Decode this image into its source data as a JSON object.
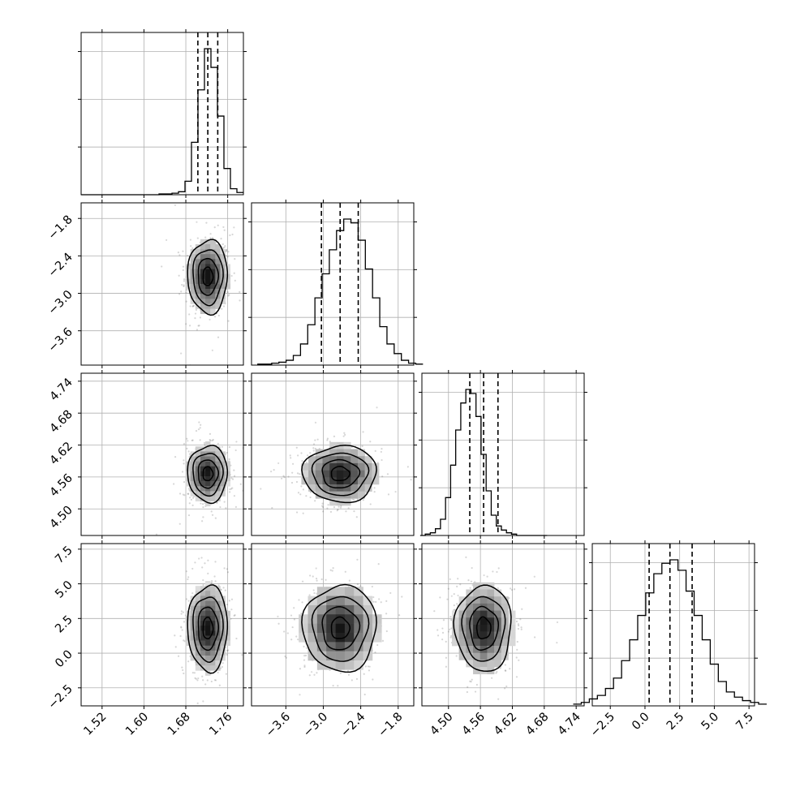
{
  "figure": {
    "title": "",
    "type": "corner-plot"
  },
  "chart_data": {
    "type": "corner",
    "grid": true,
    "parameter_count": 4,
    "parameters": [
      {
        "name": "",
        "range": [
          1.48,
          1.79
        ],
        "ticks": [
          1.52,
          1.6,
          1.68,
          1.76
        ],
        "tick_labels": [
          "1.52",
          "1.60",
          "1.68",
          "1.76"
        ],
        "quantiles": [
          1.703,
          1.722,
          1.741
        ],
        "hist_counts": [
          0,
          0,
          0,
          0,
          0,
          0,
          0,
          0,
          0,
          0,
          0,
          0,
          1,
          1,
          2,
          4,
          18,
          70,
          140,
          195,
          170,
          105,
          35,
          8,
          3
        ]
      },
      {
        "name": "",
        "range": [
          -4.15,
          -1.55
        ],
        "ticks": [
          -3.6,
          -3.0,
          -2.4,
          -1.8
        ],
        "tick_labels": [
          "−3.6",
          "−3.0",
          "−2.4",
          "−1.8"
        ],
        "quantiles": [
          -3.03,
          -2.73,
          -2.44
        ],
        "hist_counts": [
          1,
          1,
          2,
          3,
          5,
          10,
          22,
          42,
          70,
          95,
          120,
          140,
          152,
          148,
          130,
          100,
          70,
          40,
          22,
          12,
          5,
          2,
          1
        ]
      },
      {
        "name": "",
        "range": [
          4.45,
          4.755
        ],
        "ticks": [
          4.5,
          4.56,
          4.62,
          4.68,
          4.74
        ],
        "tick_labels": [
          "4.50",
          "4.56",
          "4.62",
          "4.68",
          "4.74"
        ],
        "quantiles": [
          4.54,
          4.566,
          4.593
        ],
        "hist_counts": [
          0,
          1,
          2,
          5,
          12,
          28,
          52,
          78,
          98,
          108,
          105,
          88,
          60,
          33,
          15,
          7,
          4,
          2,
          1,
          0,
          0,
          0,
          0,
          0,
          0
        ]
      },
      {
        "name": "",
        "range": [
          -3.8,
          7.9
        ],
        "ticks": [
          -2.5,
          0.0,
          2.5,
          5.0,
          7.5
        ],
        "tick_labels": [
          "−2.5",
          "0.0",
          "2.5",
          "5.0",
          "7.5"
        ],
        "quantiles": [
          0.3,
          1.8,
          3.4
        ],
        "hist_counts": [
          1,
          2,
          4,
          6,
          10,
          16,
          26,
          38,
          52,
          65,
          76,
          82,
          84,
          78,
          66,
          52,
          38,
          24,
          14,
          8,
          5,
          3,
          2,
          1
        ]
      }
    ],
    "correlations": [
      {
        "row": 1,
        "col": 0,
        "rho": 0.0
      },
      {
        "row": 2,
        "col": 0,
        "rho": 0.0
      },
      {
        "row": 2,
        "col": 1,
        "rho": 0.0
      },
      {
        "row": 3,
        "col": 0,
        "rho": 0.0
      },
      {
        "row": 3,
        "col": 1,
        "rho": 0.0
      },
      {
        "row": 3,
        "col": 2,
        "rho": 0.0
      }
    ],
    "contour_levels_sigma": [
      0.5,
      1.0,
      1.5,
      2.0
    ],
    "quantile_probs": [
      0.16,
      0.5,
      0.84
    ],
    "scatter_points_per_panel": 450
  }
}
